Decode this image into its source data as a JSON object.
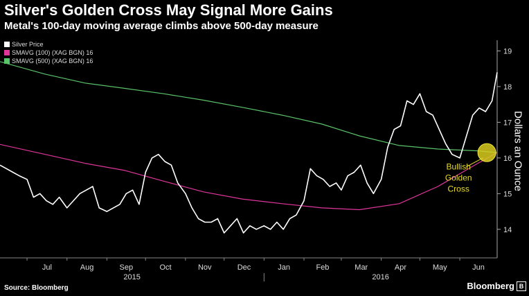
{
  "title": "Silver's Golden Cross May Signal More Gains",
  "subtitle": "Metal's 100-day moving average climbs above 500-day measure",
  "source": "Source: Bloomberg",
  "brand": "Bloomberg",
  "brand_icon": "B",
  "annotation": "Bullish\nGolden\nCross",
  "legend": [
    {
      "label": "Silver Price",
      "color": "#ffffff"
    },
    {
      "label": "SMAVG (100) (XAG BGN) 16",
      "color": "#e0359b"
    },
    {
      "label": "SMAVG (500) (XAG BGN) 16",
      "color": "#5ac46a"
    }
  ],
  "chart_data": {
    "type": "line",
    "ylabel": "Dollars an Ounce",
    "ylim": [
      13.2,
      19.3
    ],
    "yticks": [
      14,
      15,
      16,
      17,
      18,
      19
    ],
    "xlim": [
      "2015-06-10",
      "2016-06-30"
    ],
    "month_ticks": [
      {
        "label": "Jul",
        "date": "2015-07-01"
      },
      {
        "label": "Aug",
        "date": "2015-08-01"
      },
      {
        "label": "Sep",
        "date": "2015-09-01"
      },
      {
        "label": "Oct",
        "date": "2015-10-01"
      },
      {
        "label": "Nov",
        "date": "2015-11-01"
      },
      {
        "label": "Dec",
        "date": "2015-12-01"
      },
      {
        "label": "Jan",
        "date": "2016-01-01"
      },
      {
        "label": "Feb",
        "date": "2016-02-01"
      },
      {
        "label": "Mar",
        "date": "2016-03-01"
      },
      {
        "label": "Apr",
        "date": "2016-04-01"
      },
      {
        "label": "May",
        "date": "2016-05-01"
      },
      {
        "label": "Jun",
        "date": "2016-06-01"
      }
    ],
    "years": [
      {
        "label": "2015",
        "from": "2015-06-10",
        "to": "2016-01-01"
      },
      {
        "label": "2016",
        "from": "2016-01-01",
        "to": "2016-06-30"
      }
    ],
    "golden_cross": {
      "date": "2016-06-22",
      "value": 16.15
    },
    "series": [
      {
        "name": "Silver Price",
        "color": "#ffffff",
        "dates": [
          "2015-06-10",
          "2015-06-15",
          "2015-06-20",
          "2015-06-25",
          "2015-07-01",
          "2015-07-06",
          "2015-07-11",
          "2015-07-16",
          "2015-07-21",
          "2015-07-26",
          "2015-08-01",
          "2015-08-06",
          "2015-08-11",
          "2015-08-16",
          "2015-08-21",
          "2015-08-26",
          "2015-09-01",
          "2015-09-06",
          "2015-09-11",
          "2015-09-16",
          "2015-09-21",
          "2015-09-26",
          "2015-10-01",
          "2015-10-06",
          "2015-10-11",
          "2015-10-16",
          "2015-10-21",
          "2015-10-26",
          "2015-11-01",
          "2015-11-06",
          "2015-11-11",
          "2015-11-16",
          "2015-11-21",
          "2015-11-26",
          "2015-12-01",
          "2015-12-06",
          "2015-12-11",
          "2015-12-16",
          "2015-12-21",
          "2015-12-26",
          "2016-01-01",
          "2016-01-06",
          "2016-01-11",
          "2016-01-16",
          "2016-01-21",
          "2016-01-26",
          "2016-02-01",
          "2016-02-06",
          "2016-02-11",
          "2016-02-16",
          "2016-02-21",
          "2016-02-26",
          "2016-03-01",
          "2016-03-06",
          "2016-03-11",
          "2016-03-16",
          "2016-03-21",
          "2016-03-26",
          "2016-04-01",
          "2016-04-06",
          "2016-04-11",
          "2016-04-16",
          "2016-04-21",
          "2016-04-26",
          "2016-05-01",
          "2016-05-06",
          "2016-05-11",
          "2016-05-16",
          "2016-05-21",
          "2016-05-26",
          "2016-06-01",
          "2016-06-06",
          "2016-06-11",
          "2016-06-16",
          "2016-06-21",
          "2016-06-26",
          "2016-06-30"
        ],
        "values": [
          15.8,
          15.7,
          15.6,
          15.5,
          15.4,
          14.9,
          15.0,
          14.8,
          14.7,
          14.9,
          14.6,
          14.8,
          15.0,
          15.1,
          15.2,
          14.6,
          14.5,
          14.6,
          14.7,
          15.0,
          15.1,
          14.7,
          15.6,
          16.0,
          16.1,
          15.9,
          15.8,
          15.3,
          15.0,
          14.6,
          14.3,
          14.2,
          14.2,
          14.3,
          13.9,
          14.1,
          14.3,
          13.9,
          14.1,
          14.0,
          14.1,
          14.0,
          14.2,
          14.0,
          14.3,
          14.4,
          14.8,
          15.7,
          15.5,
          15.4,
          15.2,
          15.3,
          15.1,
          15.5,
          15.6,
          15.8,
          15.3,
          15.0,
          15.4,
          16.3,
          16.8,
          16.9,
          17.6,
          17.5,
          17.8,
          17.3,
          17.2,
          16.8,
          16.4,
          16.1,
          16.0,
          16.6,
          17.2,
          17.4,
          17.3,
          17.6,
          18.4
        ]
      },
      {
        "name": "SMAVG (100) (XAG BGN) 16",
        "color": "#e0359b",
        "dates": [
          "2015-06-10",
          "2015-07-15",
          "2015-08-15",
          "2015-09-15",
          "2015-10-15",
          "2015-11-15",
          "2015-12-15",
          "2016-01-15",
          "2016-02-15",
          "2016-03-15",
          "2016-04-15",
          "2016-05-15",
          "2016-06-15",
          "2016-06-30"
        ],
        "values": [
          16.38,
          16.1,
          15.85,
          15.65,
          15.35,
          15.05,
          14.85,
          14.72,
          14.6,
          14.55,
          14.72,
          15.2,
          15.85,
          16.15
        ]
      },
      {
        "name": "SMAVG (500) (XAG BGN) 16",
        "color": "#5ac46a",
        "dates": [
          "2015-06-10",
          "2015-07-15",
          "2015-08-15",
          "2015-09-15",
          "2015-10-15",
          "2015-11-15",
          "2015-12-15",
          "2016-01-15",
          "2016-02-15",
          "2016-03-15",
          "2016-04-15",
          "2016-05-15",
          "2016-06-15",
          "2016-06-30"
        ],
        "values": [
          18.7,
          18.35,
          18.1,
          17.95,
          17.8,
          17.62,
          17.42,
          17.2,
          16.95,
          16.62,
          16.35,
          16.25,
          16.2,
          16.15
        ]
      }
    ]
  }
}
